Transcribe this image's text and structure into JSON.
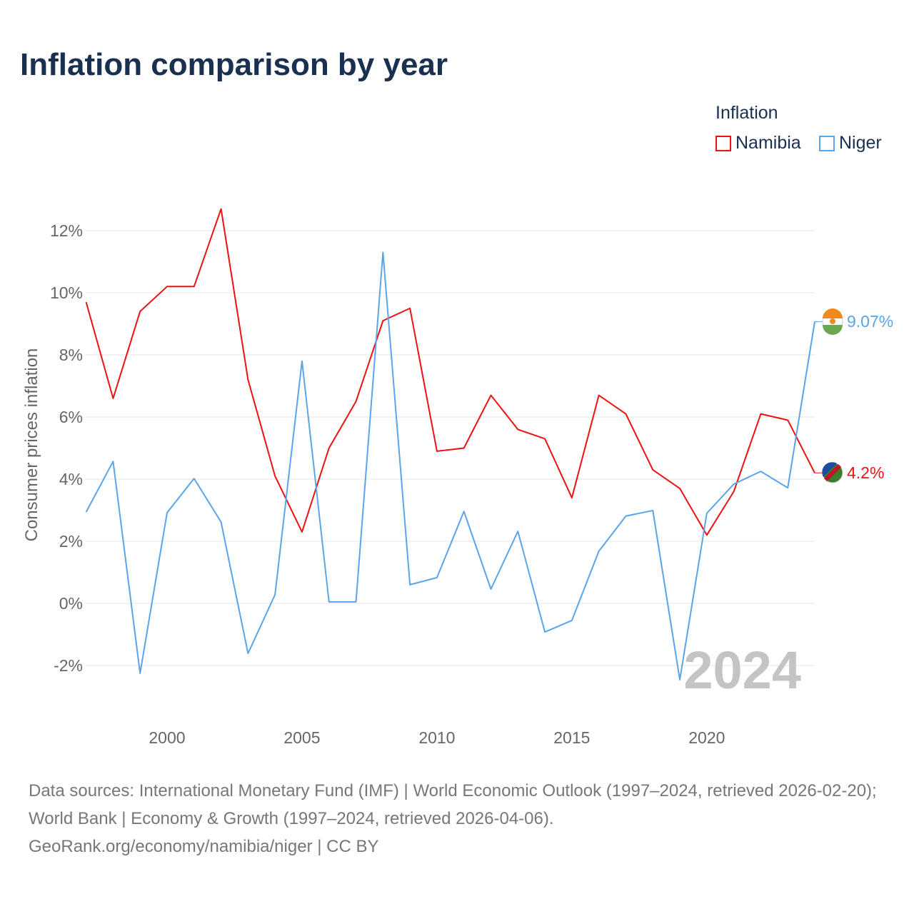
{
  "title": "Inflation comparison by year",
  "legend": {
    "title": "Inflation",
    "items": [
      "Namibia",
      "Niger"
    ]
  },
  "watermark_year": "2024",
  "footer": {
    "line1": "Data sources: International Monetary Fund (IMF) | World Economic Outlook (1997–2024, retrieved 2026-02-20); World Bank | Economy & Growth (1997–2024, retrieved 2026-04-06).",
    "line2": "GeoRank.org/economy/namibia/niger | CC BY"
  },
  "chart_data": {
    "type": "line",
    "title": "Inflation comparison by year",
    "xlabel": "",
    "ylabel": "Consumer prices inflation",
    "xlim": [
      1997,
      2024
    ],
    "ylim": [
      -3.5,
      13.5
    ],
    "yticks": [
      -2,
      0,
      2,
      4,
      6,
      8,
      10,
      12
    ],
    "ytick_labels": [
      "-2%",
      "0%",
      "2%",
      "4%",
      "6%",
      "8%",
      "10%",
      "12%"
    ],
    "xticks": [
      2000,
      2005,
      2010,
      2015,
      2020
    ],
    "xtick_labels": [
      "2000",
      "2005",
      "2010",
      "2015",
      "2020"
    ],
    "grid": true,
    "legend_position": "top-right",
    "x": [
      1997,
      1998,
      1999,
      2000,
      2001,
      2002,
      2003,
      2004,
      2005,
      2006,
      2007,
      2008,
      2009,
      2010,
      2011,
      2012,
      2013,
      2014,
      2015,
      2016,
      2017,
      2018,
      2019,
      2020,
      2021,
      2022,
      2023,
      2024
    ],
    "series": [
      {
        "name": "Namibia",
        "color": "#ee1111",
        "end_label": "4.2%",
        "values": [
          9.7,
          6.6,
          9.4,
          10.2,
          10.2,
          12.7,
          7.2,
          4.1,
          2.3,
          5.0,
          6.5,
          9.1,
          9.5,
          4.9,
          5.0,
          6.7,
          5.6,
          5.3,
          3.4,
          6.7,
          6.1,
          4.3,
          3.7,
          2.2,
          3.6,
          6.1,
          5.9,
          4.2
        ]
      },
      {
        "name": "Niger",
        "color": "#5aa5ea",
        "end_label": "9.07%",
        "values": [
          2.94,
          4.57,
          -2.25,
          2.92,
          4.02,
          2.62,
          -1.61,
          0.28,
          7.8,
          0.05,
          0.05,
          11.3,
          0.6,
          0.83,
          2.96,
          0.46,
          2.32,
          -0.92,
          -0.55,
          1.68,
          2.81,
          2.99,
          -2.46,
          2.9,
          3.84,
          4.25,
          3.72,
          9.07
        ]
      }
    ]
  }
}
